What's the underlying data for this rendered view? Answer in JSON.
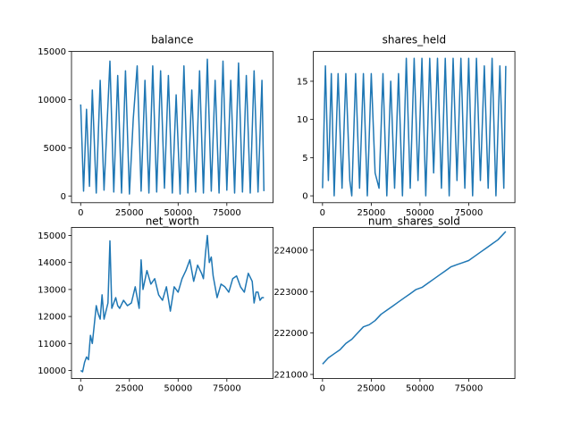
{
  "chart_data": [
    {
      "type": "line",
      "title": "balance",
      "xlabel": "",
      "ylabel": "",
      "xlim": [
        -4700,
        98700
      ],
      "ylim": [
        -700,
        15000
      ],
      "xticks": [
        0,
        25000,
        50000,
        75000
      ],
      "xtick_labels": [
        "0",
        "25000",
        "50000",
        "75000"
      ],
      "yticks": [
        0,
        5000,
        10000,
        15000
      ],
      "ytick_labels": [
        "0",
        "5000",
        "10000",
        "15000"
      ],
      "grid": false,
      "color": "#1f77b4",
      "series": [
        {
          "x": [
            0,
            1500,
            3000,
            4500,
            6000,
            8000,
            10000,
            12000,
            14000,
            15000,
            17000,
            19000,
            21000,
            23000,
            25000,
            27000,
            29000,
            31000,
            33000,
            35000,
            37000,
            39000,
            41000,
            43000,
            45000,
            47000,
            49000,
            51000,
            53000,
            55000,
            57000,
            59000,
            61000,
            63000,
            65000,
            67000,
            69000,
            71000,
            73000,
            75000,
            77000,
            79000,
            81000,
            83000,
            85000,
            87000,
            89000,
            91000,
            93000,
            94000
          ],
          "values": [
            9500,
            500,
            9000,
            1000,
            11000,
            300,
            12000,
            600,
            9500,
            14000,
            400,
            12500,
            300,
            13000,
            200,
            8000,
            13500,
            500,
            12000,
            300,
            13500,
            400,
            13000,
            800,
            12500,
            300,
            10500,
            200,
            13500,
            300,
            11000,
            400,
            13000,
            300,
            14200,
            500,
            12000,
            300,
            14000,
            600,
            12000,
            300,
            13800,
            400,
            12500,
            300,
            13000,
            400,
            12000,
            500
          ]
        }
      ]
    },
    {
      "type": "line",
      "title": "shares_held",
      "xlabel": "",
      "ylabel": "",
      "xlim": [
        -4700,
        98700
      ],
      "ylim": [
        -0.9,
        18.9
      ],
      "xticks": [
        0,
        25000,
        50000,
        75000
      ],
      "xtick_labels": [
        "0",
        "25000",
        "50000",
        "75000"
      ],
      "yticks": [
        0,
        5,
        10,
        15
      ],
      "ytick_labels": [
        "0",
        "5",
        "10",
        "15"
      ],
      "grid": false,
      "color": "#1f77b4",
      "series": [
        {
          "x": [
            0,
            1500,
            3000,
            4500,
            6000,
            8000,
            10000,
            12000,
            14000,
            15000,
            17000,
            19000,
            21000,
            23000,
            25000,
            27000,
            29000,
            31000,
            33000,
            35000,
            37000,
            39000,
            41000,
            43000,
            45000,
            47000,
            49000,
            51000,
            53000,
            55000,
            57000,
            59000,
            61000,
            63000,
            65000,
            67000,
            69000,
            71000,
            73000,
            75000,
            77000,
            79000,
            81000,
            83000,
            85000,
            87000,
            89000,
            91000,
            93000,
            94000
          ],
          "values": [
            1,
            17,
            2,
            16,
            0,
            16,
            1,
            16,
            2,
            0,
            16,
            1,
            16,
            0,
            16,
            3,
            1,
            16,
            0,
            15,
            1,
            16,
            0,
            18,
            1,
            18,
            2,
            18,
            0,
            18,
            3,
            18,
            1,
            18,
            0,
            18,
            2,
            18,
            1,
            18,
            0,
            18,
            2,
            17,
            1,
            18,
            0,
            17,
            1,
            17
          ]
        }
      ]
    },
    {
      "type": "line",
      "title": "net_worth",
      "xlabel": "",
      "ylabel": "",
      "xlim": [
        -4700,
        98700
      ],
      "ylim": [
        9700,
        15300
      ],
      "xticks": [
        0,
        25000,
        50000,
        75000
      ],
      "xtick_labels": [
        "0",
        "25000",
        "50000",
        "75000"
      ],
      "yticks": [
        10000,
        11000,
        12000,
        13000,
        14000,
        15000
      ],
      "ytick_labels": [
        "10000",
        "11000",
        "12000",
        "13000",
        "14000",
        "15000"
      ],
      "grid": false,
      "color": "#1f77b4",
      "series": [
        {
          "x": [
            0,
            1000,
            2000,
            3000,
            4000,
            5000,
            6000,
            7000,
            8000,
            9000,
            10000,
            11000,
            12000,
            13000,
            14000,
            15000,
            16000,
            17000,
            18000,
            19000,
            20000,
            22000,
            24000,
            26000,
            28000,
            30000,
            31000,
            32000,
            34000,
            36000,
            38000,
            40000,
            42000,
            44000,
            46000,
            48000,
            50000,
            52000,
            54000,
            56000,
            58000,
            60000,
            62000,
            63000,
            64000,
            65000,
            66000,
            67000,
            68000,
            70000,
            72000,
            74000,
            76000,
            78000,
            80000,
            82000,
            84000,
            86000,
            88000,
            89000,
            90000,
            91000,
            92000,
            93000,
            94000
          ],
          "values": [
            10000,
            9950,
            10300,
            10500,
            10400,
            11300,
            11000,
            11700,
            12400,
            12100,
            11900,
            12800,
            11900,
            12200,
            12500,
            14800,
            12300,
            12500,
            12700,
            12400,
            12300,
            12600,
            12400,
            12500,
            13100,
            12300,
            14100,
            13000,
            13700,
            13200,
            13400,
            12800,
            12600,
            13100,
            12200,
            13100,
            12900,
            13400,
            13700,
            14100,
            13300,
            13900,
            13600,
            13400,
            14300,
            15000,
            14000,
            14200,
            13500,
            12700,
            13200,
            13100,
            12900,
            13400,
            13500,
            13100,
            12900,
            13600,
            13300,
            12500,
            12900,
            12900,
            12600,
            12700,
            12700
          ]
        }
      ]
    },
    {
      "type": "line",
      "title": "num_shares_sold",
      "xlabel": "",
      "ylabel": "",
      "xlim": [
        -4700,
        98700
      ],
      "ylim": [
        220900,
        224550
      ],
      "xticks": [
        0,
        25000,
        50000,
        75000
      ],
      "xtick_labels": [
        "0",
        "25000",
        "50000",
        "75000"
      ],
      "yticks": [
        221000,
        222000,
        223000,
        224000
      ],
      "ytick_labels": [
        "221000",
        "222000",
        "223000",
        "224000"
      ],
      "grid": false,
      "color": "#1f77b4",
      "series": [
        {
          "x": [
            0,
            3000,
            6000,
            9000,
            12000,
            15000,
            18000,
            21000,
            24000,
            27000,
            30000,
            33000,
            36000,
            39000,
            42000,
            45000,
            48000,
            51000,
            54000,
            57000,
            60000,
            63000,
            66000,
            69000,
            72000,
            75000,
            78000,
            81000,
            84000,
            87000,
            90000,
            92000,
            94000
          ],
          "values": [
            221250,
            221400,
            221500,
            221600,
            221750,
            221850,
            222000,
            222150,
            222200,
            222300,
            222450,
            222550,
            222650,
            222750,
            222850,
            222950,
            223050,
            223100,
            223200,
            223300,
            223400,
            223500,
            223600,
            223650,
            223700,
            223750,
            223850,
            223950,
            224050,
            224150,
            224250,
            224350,
            224450
          ]
        }
      ]
    }
  ]
}
